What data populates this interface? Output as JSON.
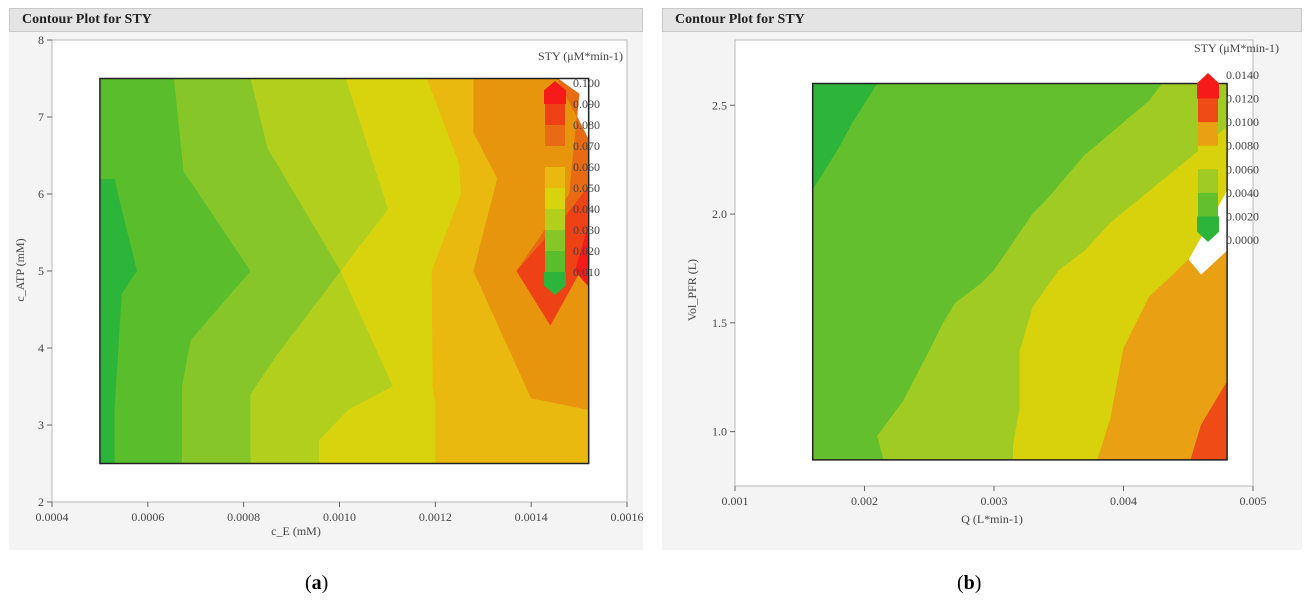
{
  "figure": {
    "caption_a": "a",
    "caption_b": "b"
  },
  "chart_data": [
    {
      "type": "contour",
      "title": "Contour Plot for STY",
      "xlabel": "c_E (mM)",
      "ylabel": "c_ATP (mM)",
      "xlim": [
        0.0004,
        0.0016
      ],
      "ylim": [
        2,
        8
      ],
      "data_xrange": [
        0.0005,
        0.00152
      ],
      "data_yrange": [
        2.5,
        7.5
      ],
      "xticks": [
        "0.0004",
        "0.0006",
        "0.0008",
        "0.0010",
        "0.0012",
        "0.0014",
        "0.0016"
      ],
      "yticks": [
        "2",
        "3",
        "4",
        "5",
        "6",
        "7",
        "8"
      ],
      "legend_title": "STY (μM*min-1)",
      "legend_levels": [
        "0.100",
        "0.090",
        "0.080",
        "0.070",
        "0.060",
        "0.050",
        "0.040",
        "0.030",
        "0.020",
        "0.010"
      ],
      "colors": [
        "#2db43a",
        "#5abd2c",
        "#86c629",
        "#b3cf1e",
        "#d9d30e",
        "#e9b90f",
        "#e8950e",
        "#e86a12",
        "#ee4116",
        "#f61a1a"
      ],
      "regions": [
        [
          [
            0.0005,
            2.5
          ],
          [
            0.000531,
            2.5
          ],
          [
            0.000531,
            3.2
          ],
          [
            0.000546,
            4.7
          ],
          [
            0.000578,
            5.0
          ],
          [
            0.000546,
            5.8
          ],
          [
            0.000531,
            6.2
          ],
          [
            0.0005,
            6.2
          ]
        ],
        [
          [
            0.000531,
            2.5
          ],
          [
            0.000672,
            2.5
          ],
          [
            0.000672,
            3.5
          ],
          [
            0.00069,
            4.1
          ],
          [
            0.000815,
            5.0
          ],
          [
            0.000675,
            6.3
          ],
          [
            0.000655,
            7.5
          ],
          [
            0.0005,
            7.5
          ],
          [
            0.0005,
            6.2
          ],
          [
            0.000531,
            6.2
          ],
          [
            0.000546,
            5.8
          ],
          [
            0.000578,
            5.0
          ],
          [
            0.000546,
            4.7
          ],
          [
            0.000531,
            3.2
          ]
        ],
        [
          [
            0.000672,
            2.5
          ],
          [
            0.000815,
            2.5
          ],
          [
            0.000815,
            3.4
          ],
          [
            0.000869,
            3.9
          ],
          [
            0.001003,
            5.0
          ],
          [
            0.00085,
            6.6
          ],
          [
            0.000815,
            7.5
          ],
          [
            0.000655,
            7.5
          ],
          [
            0.000675,
            6.3
          ],
          [
            0.000815,
            5.0
          ],
          [
            0.00069,
            4.1
          ],
          [
            0.000672,
            3.5
          ]
        ],
        [
          [
            0.000815,
            2.5
          ],
          [
            0.000958,
            2.5
          ],
          [
            0.000958,
            2.8
          ],
          [
            0.00102,
            3.2
          ],
          [
            0.001112,
            3.5
          ],
          [
            0.001003,
            5.0
          ],
          [
            0.001102,
            5.8
          ],
          [
            0.001014,
            7.5
          ],
          [
            0.000815,
            7.5
          ],
          [
            0.00085,
            6.6
          ],
          [
            0.001003,
            5.0
          ],
          [
            0.000869,
            3.9
          ],
          [
            0.000815,
            3.4
          ]
        ],
        [
          [
            0.000958,
            2.5
          ],
          [
            0.0012,
            2.5
          ],
          [
            0.0012,
            3.3
          ],
          [
            0.001195,
            3.5
          ],
          [
            0.001193,
            5.0
          ],
          [
            0.001254,
            6.0
          ],
          [
            0.00125,
            6.4
          ],
          [
            0.001183,
            7.5
          ],
          [
            0.001014,
            7.5
          ],
          [
            0.001102,
            5.8
          ],
          [
            0.001003,
            5.0
          ],
          [
            0.001112,
            3.5
          ],
          [
            0.00102,
            3.2
          ],
          [
            0.000958,
            2.8
          ]
        ],
        [
          [
            0.0012,
            2.5
          ],
          [
            0.00152,
            2.5
          ],
          [
            0.00152,
            3.2
          ],
          [
            0.0014,
            3.35
          ],
          [
            0.00128,
            5.0
          ],
          [
            0.00133,
            6.2
          ],
          [
            0.00128,
            6.8
          ],
          [
            0.00128,
            7.5
          ],
          [
            0.001183,
            7.5
          ],
          [
            0.00125,
            6.4
          ],
          [
            0.001254,
            6.0
          ],
          [
            0.001193,
            5.0
          ],
          [
            0.001195,
            3.5
          ],
          [
            0.0012,
            3.3
          ]
        ],
        [
          [
            0.00128,
            7.5
          ],
          [
            0.00128,
            6.8
          ],
          [
            0.00133,
            6.2
          ],
          [
            0.00128,
            5.0
          ],
          [
            0.0014,
            3.35
          ],
          [
            0.00152,
            3.2
          ],
          [
            0.00152,
            6.7
          ],
          [
            0.001455,
            7.5
          ]
        ],
        [
          [
            0.001455,
            7.5
          ],
          [
            0.00152,
            6.7
          ],
          [
            0.00152,
            5.2
          ],
          [
            0.00144,
            4.3
          ],
          [
            0.00137,
            5.0
          ],
          [
            0.00148,
            6.0
          ],
          [
            0.0015,
            7.3
          ]
        ],
        [
          [
            0.00137,
            5.0
          ],
          [
            0.00144,
            4.3
          ],
          [
            0.00152,
            5.2
          ],
          [
            0.00152,
            6.1
          ],
          [
            0.00147,
            5.7
          ]
        ],
        [
          [
            0.00152,
            5.6
          ],
          [
            0.00152,
            4.8
          ],
          [
            0.001492,
            5.0
          ]
        ]
      ]
    },
    {
      "type": "contour",
      "title": "Contour Plot for STY",
      "xlabel": "Q (L*min-1)",
      "ylabel": "Vol_PFR (L)",
      "xlim": [
        0.001,
        0.005
      ],
      "ylim": [
        0.75,
        2.8
      ],
      "data_xrange": [
        0.0016,
        0.0048
      ],
      "data_yrange": [
        0.87,
        2.6
      ],
      "xticks": [
        "0.001",
        "0.002",
        "0.003",
        "0.004",
        "0.005"
      ],
      "yticks": [
        "1.0",
        "1.5",
        "2.0",
        "2.5"
      ],
      "legend_title": "STY (μM*min-1)",
      "legend_levels": [
        "0.0140",
        "0.0120",
        "0.0100",
        "0.0080",
        "0.0060",
        "0.0040",
        "0.0020",
        "0.0000"
      ],
      "colors": [
        "#2db43a",
        "#64bf2e",
        "#a0cb22",
        "#d8d20c",
        "#e9a012",
        "#ee4c16",
        "#f61a1a"
      ],
      "regions": [
        [
          [
            0.0016,
            2.6
          ],
          [
            0.0021,
            2.6
          ],
          [
            0.0019,
            2.41
          ],
          [
            0.0018,
            2.3
          ],
          [
            0.0016,
            2.11
          ]
        ],
        [
          [
            0.0016,
            0.87
          ],
          [
            0.00215,
            0.87
          ],
          [
            0.0021,
            0.98
          ],
          [
            0.0023,
            1.14
          ],
          [
            0.0025,
            1.37
          ],
          [
            0.0026,
            1.49
          ],
          [
            0.0027,
            1.59
          ],
          [
            0.0029,
            1.68
          ],
          [
            0.003,
            1.74
          ],
          [
            0.0033,
            2.0
          ],
          [
            0.0034,
            2.06
          ],
          [
            0.0037,
            2.27
          ],
          [
            0.0039,
            2.37
          ],
          [
            0.0042,
            2.52
          ],
          [
            0.0043,
            2.6
          ],
          [
            0.0021,
            2.6
          ],
          [
            0.0019,
            2.41
          ],
          [
            0.0018,
            2.3
          ],
          [
            0.0016,
            2.11
          ]
        ],
        [
          [
            0.00215,
            0.87
          ],
          [
            0.00315,
            0.87
          ],
          [
            0.00315,
            0.94
          ],
          [
            0.0032,
            1.11
          ],
          [
            0.0032,
            1.37
          ],
          [
            0.0033,
            1.57
          ],
          [
            0.0035,
            1.74
          ],
          [
            0.0037,
            1.83
          ],
          [
            0.0039,
            1.96
          ],
          [
            0.0046,
            2.3
          ],
          [
            0.0048,
            2.4
          ],
          [
            0.0048,
            2.6
          ],
          [
            0.0043,
            2.6
          ],
          [
            0.0042,
            2.52
          ],
          [
            0.0039,
            2.37
          ],
          [
            0.0037,
            2.27
          ],
          [
            0.0034,
            2.06
          ],
          [
            0.0033,
            2.0
          ],
          [
            0.003,
            1.74
          ],
          [
            0.0029,
            1.68
          ],
          [
            0.0027,
            1.59
          ],
          [
            0.0026,
            1.49
          ],
          [
            0.0025,
            1.37
          ],
          [
            0.0023,
            1.14
          ],
          [
            0.0021,
            0.98
          ]
        ],
        [
          [
            0.00315,
            0.87
          ],
          [
            0.0038,
            0.87
          ],
          [
            0.0039,
            1.06
          ],
          [
            0.004,
            1.38
          ],
          [
            0.0042,
            1.62
          ],
          [
            0.0044,
            1.73
          ],
          [
            0.0045,
            1.79
          ],
          [
            0.0048,
            2.11
          ],
          [
            0.0048,
            2.4
          ],
          [
            0.0046,
            2.3
          ],
          [
            0.0039,
            1.96
          ],
          [
            0.0037,
            1.83
          ],
          [
            0.0035,
            1.74
          ],
          [
            0.0033,
            1.57
          ],
          [
            0.0032,
            1.37
          ],
          [
            0.0032,
            1.11
          ],
          [
            0.00315,
            0.94
          ]
        ],
        [
          [
            0.0038,
            0.87
          ],
          [
            0.00452,
            0.87
          ],
          [
            0.0046,
            1.03
          ],
          [
            0.0048,
            1.23
          ],
          [
            0.0048,
            1.83
          ],
          [
            0.0046,
            1.72
          ],
          [
            0.0045,
            1.79
          ],
          [
            0.0044,
            1.73
          ],
          [
            0.0042,
            1.62
          ],
          [
            0.004,
            1.38
          ],
          [
            0.0039,
            1.06
          ]
        ],
        [
          [
            0.00452,
            0.87
          ],
          [
            0.0048,
            0.87
          ],
          [
            0.0048,
            1.23
          ],
          [
            0.0046,
            1.03
          ]
        ]
      ]
    }
  ]
}
